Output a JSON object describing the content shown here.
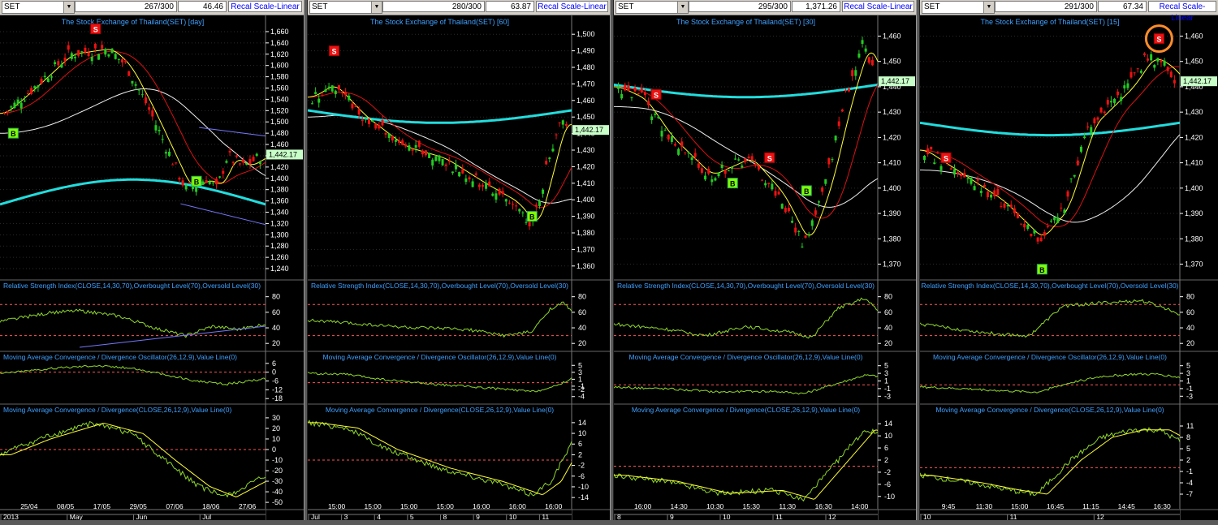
{
  "colors": {
    "bg": "#000000",
    "grid": "#2b2b2b",
    "up": "#22cc22",
    "down": "#ee1111",
    "ma_yellow": "#ffff33",
    "ma_red": "#dd1111",
    "ma_white": "#eeeeee",
    "ma_cyan": "#22dddd",
    "title": "#3fa0ff",
    "axis": "#ffffff",
    "highlight": "#ff8c2a",
    "buy": "#7fff00",
    "sell": "#ee1111",
    "dash": "#ff5555"
  },
  "panels": [
    {
      "symbol": "SET",
      "count": "267/300",
      "value": "46.46",
      "recal": "Recal Scale-Linear",
      "title": "The Stock Exchange of Thailand(SET) [day]",
      "yticks": [
        "1,660",
        "1,640",
        "1,620",
        "1,600",
        "1,580",
        "1,560",
        "1,540",
        "1,520",
        "1,500",
        "1,480",
        "1,460",
        "1,440",
        "1,420",
        "1,400",
        "1,380",
        "1,360",
        "1,340",
        "1,320",
        "1,300",
        "1,280",
        "1,260",
        "1,240"
      ],
      "price_label": "1,442.17",
      "rsi_title": "Relative Strength Index(CLOSE,14,30,70),Overbought Level(70),Oversold Level(30)",
      "rsi_ticks": [
        "80",
        "60",
        "40",
        "20"
      ],
      "osc_title": "Moving Average Convergence / Divergence Oscillator(26,12,9),Value Line(0)",
      "osc_ticks": [
        "6",
        "0",
        "-6",
        "-12",
        "-18"
      ],
      "macd_title": "Moving Average Convergence / Divergence(CLOSE,26,12,9),Value Line(0)",
      "macd_ticks": [
        "30",
        "20",
        "10",
        "0",
        "-10",
        "-20",
        "-30",
        "-40",
        "-50"
      ],
      "xlabels1": [
        "25/04",
        "08/05",
        "17/05",
        "29/05",
        "07/06",
        "18/06",
        "27/06"
      ],
      "xlabels2": [
        "2013",
        "May",
        "Jun",
        "Jul"
      ],
      "signals": [
        {
          "t": "B"
        },
        {
          "t": "S"
        },
        {
          "t": "B"
        }
      ]
    },
    {
      "symbol": "SET",
      "count": "280/300",
      "value": "63.87",
      "recal": "Recal Scale-Linear",
      "title": "The Stock Exchange of Thailand(SET) [60]",
      "yticks": [
        "1,500",
        "1,490",
        "1,480",
        "1,470",
        "1,460",
        "1,450",
        "1,440",
        "1,430",
        "1,420",
        "1,410",
        "1,400",
        "1,390",
        "1,380",
        "1,370",
        "1,360"
      ],
      "price_label": "1,442.17",
      "rsi_title": "Relative Strength Index(CLOSE,14,30,70),Overbought Level(70),Oversold Level(30)",
      "rsi_ticks": [
        "80",
        "60",
        "40",
        "20"
      ],
      "osc_title": "Moving Average Convergence / Divergence Oscillator(26,12,9),Value Line(0)",
      "osc_ticks": [
        "5",
        "3",
        "1",
        "-1",
        "-2",
        "-4"
      ],
      "macd_title": "Moving Average Convergence / Divergence(CLOSE,26,12,9),Value Line(0)",
      "macd_ticks": [
        "14",
        "10",
        "6",
        "2",
        "-2",
        "-6",
        "-10",
        "-14"
      ],
      "xlabels1": [
        "15:00",
        "15:00",
        "15:00",
        "15:00",
        "16:00",
        "16:00",
        "16:00"
      ],
      "xlabels2": [
        "Jul",
        "3",
        "4",
        "5",
        "8",
        "9",
        "10",
        "11"
      ],
      "signals": [
        {
          "t": "S"
        },
        {
          "t": "B"
        }
      ]
    },
    {
      "symbol": "SET",
      "count": "295/300",
      "value": "1,371.26",
      "recal": "Recal Scale-Linear",
      "title": "The Stock Exchange of Thailand(SET) [30]",
      "yticks": [
        "1,460",
        "1,450",
        "1,440",
        "1,430",
        "1,420",
        "1,410",
        "1,400",
        "1,390",
        "1,380",
        "1,370"
      ],
      "price_label": "1,442.17",
      "rsi_title": "Relative Strength Index(CLOSE,14,30,70),Overbought Level(70),Oversold Level(30)",
      "rsi_ticks": [
        "80",
        "60",
        "40",
        "20"
      ],
      "osc_title": "Moving Average Convergence / Divergence Oscillator(26,12,9),Value Line(0)",
      "osc_ticks": [
        "5",
        "3",
        "1",
        "-1",
        "-3"
      ],
      "macd_title": "Moving Average Convergence / Divergence(CLOSE,26,12,9),Value Line(0)",
      "macd_ticks": [
        "14",
        "10",
        "6",
        "2",
        "-2",
        "-6",
        "-10"
      ],
      "xlabels1": [
        "16:00",
        "14:30",
        "10:30",
        "15:30",
        "11:30",
        "16:30",
        "14:00"
      ],
      "xlabels2": [
        "8",
        "9",
        "10",
        "11",
        "12"
      ],
      "signals": [
        {
          "t": "S"
        },
        {
          "t": "B"
        },
        {
          "t": "S"
        },
        {
          "t": "B"
        }
      ]
    },
    {
      "symbol": "SET",
      "count": "291/300",
      "value": "67.34",
      "recal": "Recal Scale-Linear",
      "title": "The Stock Exchange of Thailand(SET) [15]",
      "yticks": [
        "1,460",
        "1,450",
        "1,440",
        "1,430",
        "1,420",
        "1,410",
        "1,400",
        "1,390",
        "1,380",
        "1,370"
      ],
      "price_label": "1,442.17",
      "rsi_title": "Relative Strength Index(CLOSE,14,30,70),Overbought Level(70),Oversold Level(30)",
      "rsi_ticks": [
        "80",
        "60",
        "40",
        "20"
      ],
      "osc_title": "Moving Average Convergence / Divergence Oscillator(26,12,9),Value Line(0)",
      "osc_ticks": [
        "5",
        "3",
        "1",
        "-1",
        "-3"
      ],
      "macd_title": "Moving Average Convergence / Divergence(CLOSE,26,12,9),Value Line(0)",
      "macd_ticks": [
        "11",
        "8",
        "5",
        "2",
        "-1",
        "-4",
        "-7"
      ],
      "xlabels1": [
        "9:45",
        "11:30",
        "15:00",
        "16:45",
        "11:15",
        "14:45",
        "16:30"
      ],
      "xlabels2": [
        "10",
        "11",
        "12"
      ],
      "signals": [
        {
          "t": "S"
        },
        {
          "t": "B"
        },
        {
          "t": "S"
        }
      ]
    }
  ],
  "chart_data": [
    {
      "type": "candlestick",
      "title": "The Stock Exchange of Thailand(SET) [day]",
      "ylim": [
        1230,
        1670
      ],
      "close_path": [
        [
          0,
          1515
        ],
        [
          0.1,
          1555
        ],
        [
          0.25,
          1620
        ],
        [
          0.4,
          1630
        ],
        [
          0.47,
          1600
        ],
        [
          0.55,
          1530
        ],
        [
          0.62,
          1460
        ],
        [
          0.7,
          1380
        ],
        [
          0.78,
          1400
        ],
        [
          0.82,
          1380
        ],
        [
          0.86,
          1440
        ],
        [
          0.92,
          1420
        ],
        [
          1,
          1442
        ]
      ],
      "rsi_path": [
        [
          0,
          48
        ],
        [
          0.2,
          60
        ],
        [
          0.3,
          62
        ],
        [
          0.45,
          55
        ],
        [
          0.6,
          38
        ],
        [
          0.7,
          30
        ],
        [
          0.8,
          42
        ],
        [
          0.9,
          38
        ],
        [
          1,
          45
        ]
      ],
      "macd_path": [
        [
          0,
          -5
        ],
        [
          0.15,
          10
        ],
        [
          0.35,
          25
        ],
        [
          0.5,
          15
        ],
        [
          0.62,
          -10
        ],
        [
          0.75,
          -35
        ],
        [
          0.85,
          -45
        ],
        [
          1,
          -25
        ]
      ],
      "levels": {
        "rsi": [
          70,
          30
        ],
        "macd_zero": 0
      }
    },
    {
      "type": "candlestick",
      "title": "The Stock Exchange of Thailand(SET) [60]",
      "ylim": [
        1355,
        1505
      ],
      "close_path": [
        [
          0,
          1462
        ],
        [
          0.08,
          1470
        ],
        [
          0.2,
          1450
        ],
        [
          0.35,
          1432
        ],
        [
          0.5,
          1425
        ],
        [
          0.65,
          1410
        ],
        [
          0.78,
          1398
        ],
        [
          0.85,
          1383
        ],
        [
          0.9,
          1412
        ],
        [
          0.96,
          1450
        ],
        [
          1,
          1442
        ]
      ],
      "rsi_path": [
        [
          0,
          50
        ],
        [
          0.2,
          45
        ],
        [
          0.4,
          40
        ],
        [
          0.6,
          38
        ],
        [
          0.75,
          30
        ],
        [
          0.85,
          35
        ],
        [
          0.92,
          65
        ],
        [
          0.97,
          72
        ],
        [
          1,
          60
        ]
      ],
      "macd_path": [
        [
          0,
          14
        ],
        [
          0.15,
          12
        ],
        [
          0.3,
          4
        ],
        [
          0.5,
          -3
        ],
        [
          0.7,
          -8
        ],
        [
          0.85,
          -13
        ],
        [
          0.92,
          -8
        ],
        [
          1,
          6
        ]
      ],
      "levels": {
        "rsi": [
          70,
          30
        ],
        "macd_zero": 0
      }
    },
    {
      "type": "candlestick",
      "title": "The Stock Exchange of Thailand(SET) [30]",
      "ylim": [
        1366,
        1464
      ],
      "close_path": [
        [
          0,
          1440
        ],
        [
          0.1,
          1435
        ],
        [
          0.2,
          1420
        ],
        [
          0.35,
          1405
        ],
        [
          0.5,
          1412
        ],
        [
          0.62,
          1398
        ],
        [
          0.72,
          1378
        ],
        [
          0.8,
          1400
        ],
        [
          0.88,
          1435
        ],
        [
          0.95,
          1458
        ],
        [
          1,
          1442
        ]
      ],
      "rsi_path": [
        [
          0,
          45
        ],
        [
          0.2,
          38
        ],
        [
          0.35,
          30
        ],
        [
          0.5,
          42
        ],
        [
          0.65,
          35
        ],
        [
          0.75,
          28
        ],
        [
          0.85,
          65
        ],
        [
          0.95,
          78
        ],
        [
          1,
          62
        ]
      ],
      "macd_path": [
        [
          0,
          -3
        ],
        [
          0.2,
          -5
        ],
        [
          0.4,
          -9
        ],
        [
          0.6,
          -8
        ],
        [
          0.72,
          -11
        ],
        [
          0.85,
          2
        ],
        [
          0.95,
          12
        ],
        [
          1,
          11
        ]
      ],
      "levels": {
        "rsi": [
          70,
          30
        ],
        "macd_zero": 0
      }
    },
    {
      "type": "candlestick",
      "title": "The Stock Exchange of Thailand(SET) [15]",
      "ylim": [
        1366,
        1464
      ],
      "close_path": [
        [
          0,
          1415
        ],
        [
          0.15,
          1405
        ],
        [
          0.3,
          1395
        ],
        [
          0.45,
          1380
        ],
        [
          0.55,
          1392
        ],
        [
          0.65,
          1425
        ],
        [
          0.8,
          1440
        ],
        [
          0.88,
          1452
        ],
        [
          0.95,
          1448
        ],
        [
          1,
          1442
        ]
      ],
      "rsi_path": [
        [
          0,
          45
        ],
        [
          0.15,
          38
        ],
        [
          0.3,
          32
        ],
        [
          0.42,
          30
        ],
        [
          0.55,
          68
        ],
        [
          0.7,
          72
        ],
        [
          0.85,
          75
        ],
        [
          0.92,
          68
        ],
        [
          1,
          58
        ]
      ],
      "macd_path": [
        [
          0,
          -2
        ],
        [
          0.2,
          -4
        ],
        [
          0.35,
          -6
        ],
        [
          0.45,
          -7
        ],
        [
          0.58,
          2
        ],
        [
          0.7,
          8
        ],
        [
          0.82,
          10
        ],
        [
          0.92,
          10
        ],
        [
          1,
          7
        ]
      ],
      "levels": {
        "rsi": [
          70,
          30
        ],
        "macd_zero": 0
      }
    }
  ]
}
